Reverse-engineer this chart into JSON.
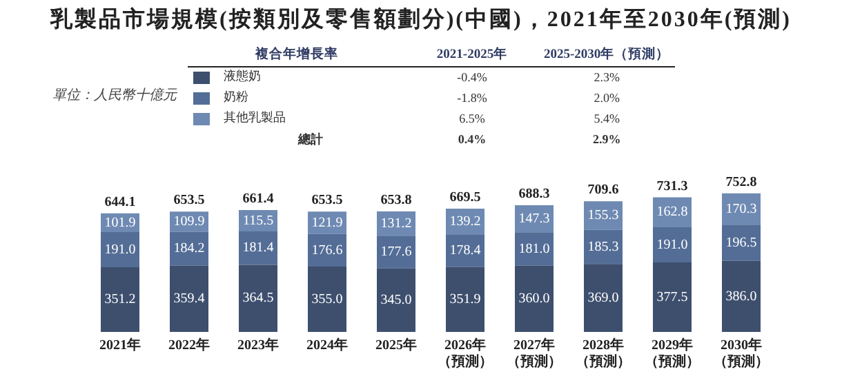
{
  "chart_data": {
    "type": "bar",
    "stacked": true,
    "title": "乳製品市場規模(按類別及零售額劃分)(中國)，2021年至2030年(預測)",
    "categories": [
      "2021年",
      "2022年",
      "2023年",
      "2024年",
      "2025年",
      "2026年（預測）",
      "2027年（預測）",
      "2028年（預測）",
      "2029年（預測）",
      "2030年（預測）"
    ],
    "series": [
      {
        "name": "液態奶",
        "color": "#3e4f6e",
        "values": [
          351.2,
          359.4,
          364.5,
          355.0,
          345.0,
          351.9,
          360.0,
          369.0,
          377.5,
          386.0
        ],
        "value_labels": [
          "351.2",
          "359.4",
          "364.5",
          "355.0",
          "345.0",
          "351.9",
          "360.0",
          "369.0",
          "377.5",
          "386.0"
        ]
      },
      {
        "name": "奶粉",
        "color": "#536d96",
        "values": [
          191.0,
          184.2,
          181.4,
          176.6,
          177.6,
          178.4,
          181.0,
          185.3,
          191.0,
          196.5
        ],
        "value_labels": [
          "191.0",
          "184.2",
          "181.4",
          "176.6",
          "177.6",
          "178.4",
          "181.0",
          "185.3",
          "191.0",
          "196.5"
        ]
      },
      {
        "name": "其他乳製品",
        "color": "#6e8ab3",
        "values": [
          101.9,
          109.9,
          115.5,
          121.9,
          131.2,
          139.2,
          147.3,
          155.3,
          162.8,
          170.3
        ],
        "value_labels": [
          "101.9",
          "109.9",
          "115.5",
          "121.9",
          "131.2",
          "139.2",
          "147.3",
          "155.3",
          "162.8",
          "170.3"
        ]
      }
    ],
    "totals": [
      "644.1",
      "653.5",
      "661.4",
      "653.5",
      "653.8",
      "669.5",
      "688.3",
      "709.6",
      "731.3",
      "752.8"
    ],
    "legend": "top",
    "grid": false,
    "tick_labels": "x",
    "annotations": [
      "單位：人民幣十億元",
      "複合年增長率",
      "2021-2025年",
      "2025-2030年（預測）",
      "-0.4%",
      "2.3%",
      "-1.8%",
      "2.0%",
      "6.5%",
      "5.4%",
      "總計",
      "0.4%",
      "2.9%"
    ]
  }
}
